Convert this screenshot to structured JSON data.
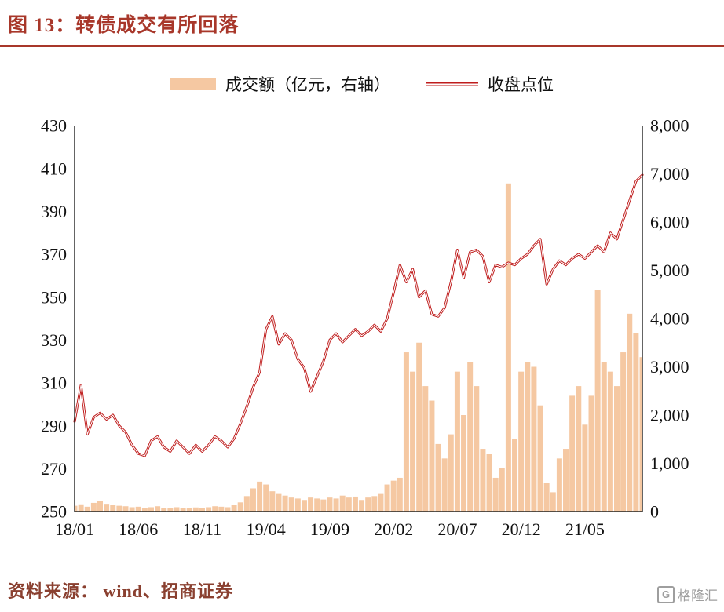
{
  "header": {
    "title": "图 13：转债成交有所回落"
  },
  "legend": {
    "volume_label": "成交额（亿元，右轴）",
    "close_label": "收盘点位"
  },
  "footer": {
    "source": "资料来源： wind、招商证券",
    "watermark": "格隆汇",
    "watermark_badge": "G"
  },
  "colors": {
    "accent_red": "#a8372a",
    "bar_fill": "#f5c8a2",
    "line_stroke": "#bf1d1d",
    "line_core": "#ffffff",
    "axis": "#222222",
    "source_text": "#8a4030",
    "watermark_gray": "#9e9e9e"
  },
  "chart_data": {
    "type": "combo",
    "title": "转债成交有所回落",
    "n_points": 90,
    "x_ticks": [
      "18/01",
      "18/06",
      "18/11",
      "19/04",
      "19/09",
      "20/02",
      "20/07",
      "20/12",
      "21/05"
    ],
    "x_tick_positions": [
      0,
      10,
      20,
      30,
      40,
      50,
      60,
      70,
      80
    ],
    "y_left_range": [
      250,
      430
    ],
    "y_left_ticks": [
      250,
      270,
      290,
      310,
      330,
      350,
      370,
      390,
      410,
      430
    ],
    "y_right_range": [
      0,
      8000
    ],
    "y_right_ticks": [
      "0",
      "1,000",
      "2,000",
      "3,000",
      "4,000",
      "5,000",
      "6,000",
      "7,000",
      "8,000"
    ],
    "legend_position": "top",
    "grid": false,
    "series": [
      {
        "name": "成交额（亿元，右轴）",
        "type": "bar",
        "axis": "right",
        "color": "#f5c8a2",
        "values": [
          120,
          150,
          100,
          180,
          220,
          160,
          140,
          120,
          110,
          90,
          100,
          80,
          90,
          110,
          80,
          70,
          90,
          80,
          75,
          85,
          70,
          90,
          110,
          100,
          90,
          140,
          190,
          320,
          480,
          620,
          560,
          420,
          380,
          330,
          290,
          270,
          240,
          290,
          270,
          250,
          290,
          270,
          330,
          290,
          310,
          240,
          290,
          320,
          380,
          560,
          640,
          700,
          3300,
          2900,
          3500,
          2600,
          2300,
          1400,
          1100,
          1600,
          2900,
          2000,
          3100,
          2600,
          1300,
          1200,
          700,
          900,
          6800,
          1500,
          2900,
          3100,
          3000,
          2200,
          600,
          400,
          1100,
          1300,
          2400,
          2600,
          1800,
          2400,
          4600,
          3100,
          2900,
          2600,
          3300,
          4100,
          3700,
          3200
        ]
      },
      {
        "name": "收盘点位",
        "type": "line",
        "axis": "left",
        "color": "#bf1d1d",
        "values": [
          292,
          309,
          286,
          294,
          296,
          293,
          295,
          290,
          287,
          281,
          277,
          276,
          283,
          285,
          280,
          278,
          283,
          280,
          277,
          281,
          278,
          281,
          285,
          283,
          280,
          284,
          291,
          299,
          308,
          315,
          335,
          341,
          328,
          333,
          330,
          321,
          317,
          306,
          313,
          320,
          330,
          333,
          329,
          332,
          335,
          332,
          334,
          337,
          334,
          340,
          352,
          365,
          357,
          363,
          350,
          353,
          342,
          341,
          345,
          357,
          372,
          359,
          371,
          372,
          369,
          357,
          365,
          364,
          366,
          365,
          368,
          370,
          374,
          377,
          356,
          363,
          367,
          365,
          368,
          370,
          368,
          371,
          374,
          371,
          380,
          377,
          386,
          395,
          404,
          407
        ]
      }
    ]
  }
}
